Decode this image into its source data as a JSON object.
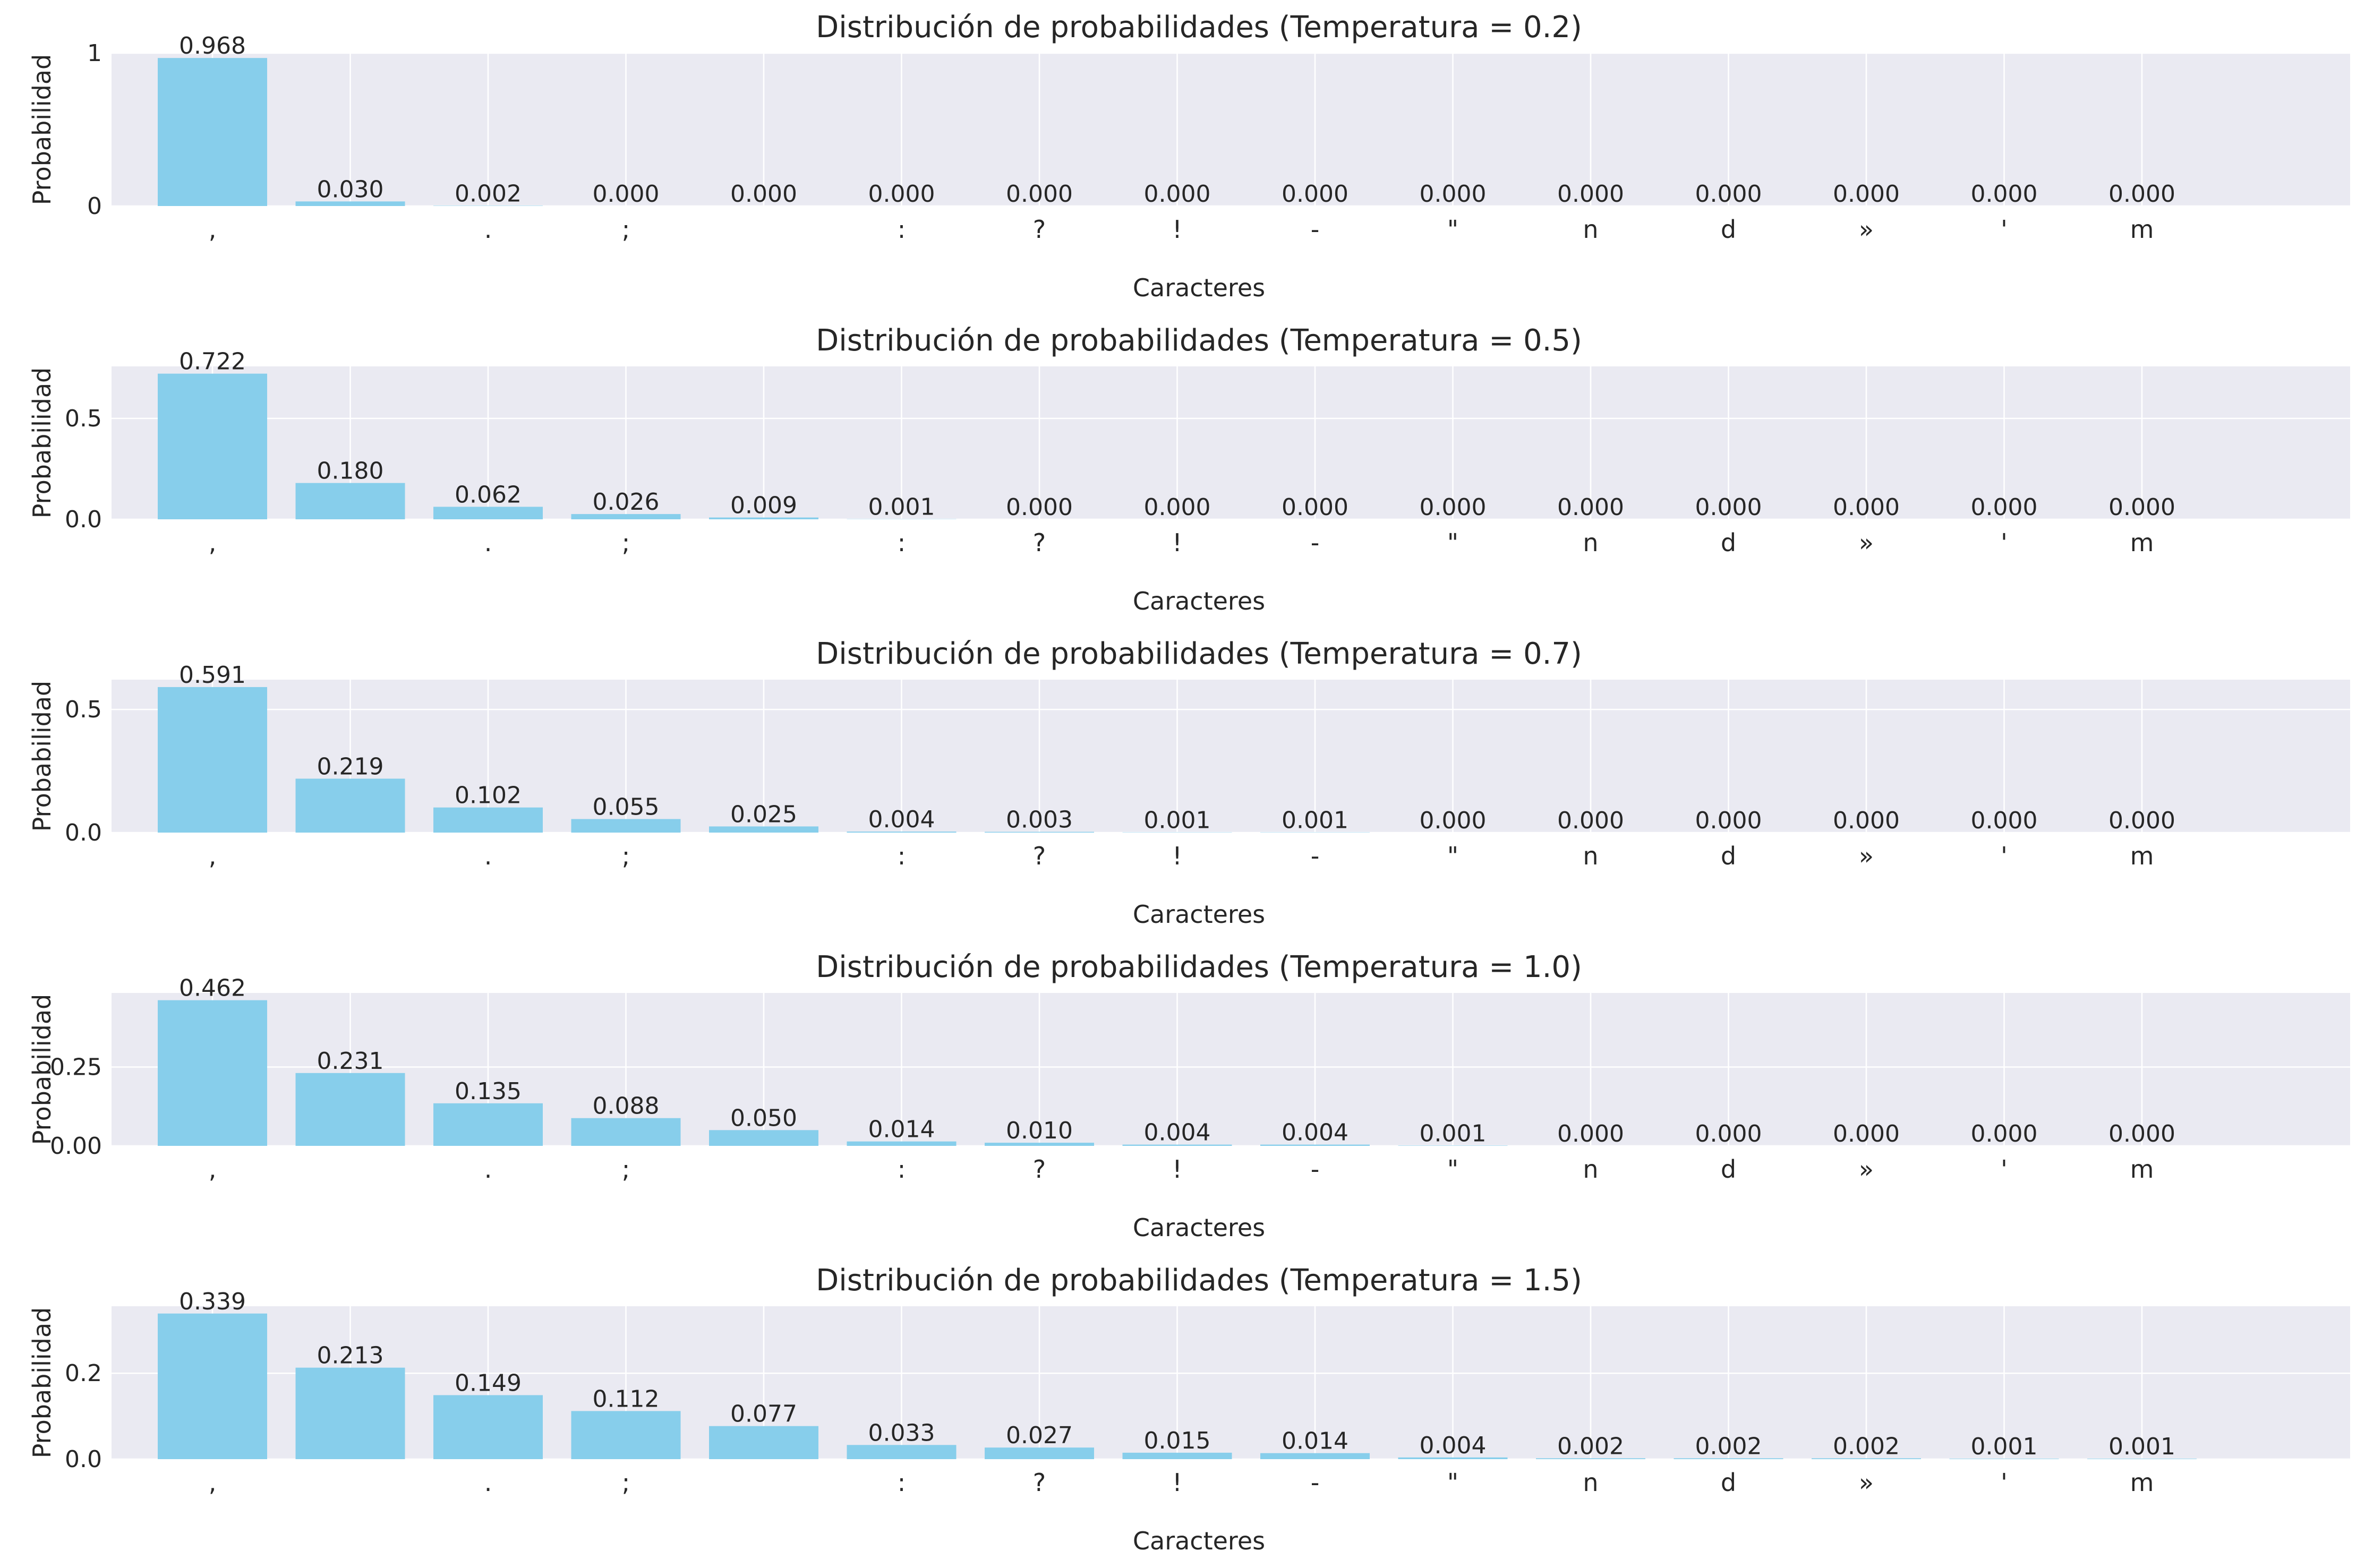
{
  "chart_data": [
    {
      "type": "bar",
      "title": "Distribución de probabilidades (Temperatura = 0.2)",
      "xlabel": "Caracteres",
      "ylabel": "Probabilidad",
      "ylim": [
        0,
        1.0
      ],
      "yticks": [
        0,
        1
      ],
      "ytick_labels": [
        "0",
        "1"
      ],
      "categories": [
        ",",
        " ",
        ".",
        ";",
        "\n",
        ":",
        "?",
        "!",
        "-",
        "\"",
        "n",
        "d",
        "»",
        "'",
        "m"
      ],
      "values": [
        0.968,
        0.03,
        0.002,
        0.0,
        0.0,
        0.0,
        0.0,
        0.0,
        0.0,
        0.0,
        0.0,
        0.0,
        0.0,
        0.0,
        0.0
      ],
      "value_labels": [
        "0.968",
        "0.030",
        "0.002",
        "0.000",
        "0.000",
        "0.000",
        "0.000",
        "0.000",
        "0.000",
        "0.000",
        "0.000",
        "0.000",
        "0.000",
        "0.000",
        "0.000"
      ],
      "grid": true,
      "bar_color": "#87CEEB"
    },
    {
      "type": "bar",
      "title": "Distribución de probabilidades (Temperatura = 0.5)",
      "xlabel": "Caracteres",
      "ylabel": "Probabilidad",
      "ylim": [
        0,
        0.758
      ],
      "yticks": [
        0,
        0.5
      ],
      "ytick_labels": [
        "0.0",
        "0.5"
      ],
      "categories": [
        ",",
        " ",
        ".",
        ";",
        "\n",
        ":",
        "?",
        "!",
        "-",
        "\"",
        "n",
        "d",
        "»",
        "'",
        "m"
      ],
      "values": [
        0.722,
        0.18,
        0.062,
        0.026,
        0.009,
        0.001,
        0.0,
        0.0,
        0.0,
        0.0,
        0.0,
        0.0,
        0.0,
        0.0,
        0.0
      ],
      "value_labels": [
        "0.722",
        "0.180",
        "0.062",
        "0.026",
        "0.009",
        "0.001",
        "0.000",
        "0.000",
        "0.000",
        "0.000",
        "0.000",
        "0.000",
        "0.000",
        "0.000",
        "0.000"
      ],
      "grid": true,
      "bar_color": "#87CEEB"
    },
    {
      "type": "bar",
      "title": "Distribución de probabilidades (Temperatura = 0.7)",
      "xlabel": "Caracteres",
      "ylabel": "Probabilidad",
      "ylim": [
        0,
        0.621
      ],
      "yticks": [
        0,
        0.5
      ],
      "ytick_labels": [
        "0.0",
        "0.5"
      ],
      "categories": [
        ",",
        " ",
        ".",
        ";",
        "\n",
        ":",
        "?",
        "!",
        "-",
        "\"",
        "n",
        "d",
        "»",
        "'",
        "m"
      ],
      "values": [
        0.591,
        0.219,
        0.102,
        0.055,
        0.025,
        0.004,
        0.003,
        0.001,
        0.001,
        0.0,
        0.0,
        0.0,
        0.0,
        0.0,
        0.0
      ],
      "value_labels": [
        "0.591",
        "0.219",
        "0.102",
        "0.055",
        "0.025",
        "0.004",
        "0.003",
        "0.001",
        "0.001",
        "0.000",
        "0.000",
        "0.000",
        "0.000",
        "0.000",
        "0.000"
      ],
      "grid": true,
      "bar_color": "#87CEEB"
    },
    {
      "type": "bar",
      "title": "Distribución de probabilidades (Temperatura = 1.0)",
      "xlabel": "Caracteres",
      "ylabel": "Probabilidad",
      "ylim": [
        0,
        0.485
      ],
      "yticks": [
        0,
        0.25
      ],
      "ytick_labels": [
        "0.00",
        "0.25"
      ],
      "categories": [
        ",",
        " ",
        ".",
        ";",
        "\n",
        ":",
        "?",
        "!",
        "-",
        "\"",
        "n",
        "d",
        "»",
        "'",
        "m"
      ],
      "values": [
        0.462,
        0.231,
        0.135,
        0.088,
        0.05,
        0.014,
        0.01,
        0.004,
        0.004,
        0.001,
        0.0,
        0.0,
        0.0,
        0.0,
        0.0
      ],
      "value_labels": [
        "0.462",
        "0.231",
        "0.135",
        "0.088",
        "0.050",
        "0.014",
        "0.010",
        "0.004",
        "0.004",
        "0.001",
        "0.000",
        "0.000",
        "0.000",
        "0.000",
        "0.000"
      ],
      "grid": true,
      "bar_color": "#87CEEB"
    },
    {
      "type": "bar",
      "title": "Distribución de probabilidades (Temperatura = 1.5)",
      "xlabel": "Caracteres",
      "ylabel": "Probabilidad",
      "ylim": [
        0,
        0.356
      ],
      "yticks": [
        0,
        0.2
      ],
      "ytick_labels": [
        "0.0",
        "0.2"
      ],
      "categories": [
        ",",
        " ",
        ".",
        ";",
        "\n",
        ":",
        "?",
        "!",
        "-",
        "\"",
        "n",
        "d",
        "»",
        "'",
        "m"
      ],
      "values": [
        0.339,
        0.213,
        0.149,
        0.112,
        0.077,
        0.033,
        0.027,
        0.015,
        0.014,
        0.004,
        0.002,
        0.002,
        0.002,
        0.001,
        0.001
      ],
      "value_labels": [
        "0.339",
        "0.213",
        "0.149",
        "0.112",
        "0.077",
        "0.033",
        "0.027",
        "0.015",
        "0.014",
        "0.004",
        "0.002",
        "0.002",
        "0.002",
        "0.001",
        "0.001"
      ],
      "grid": true,
      "bar_color": "#87CEEB"
    }
  ]
}
